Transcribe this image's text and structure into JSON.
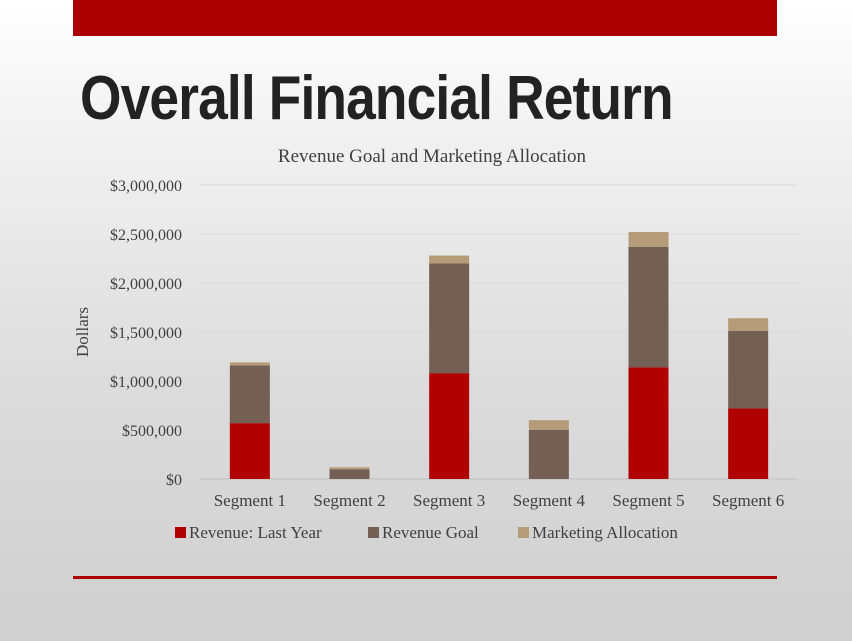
{
  "slide": {
    "title": "Overall Financial Return",
    "accent_color": "#ad0000"
  },
  "chart_data": {
    "type": "bar",
    "stacked": true,
    "title": "Revenue Goal and Marketing Allocation",
    "xlabel": "",
    "ylabel": "Dollars",
    "ylim": [
      0,
      3000000
    ],
    "yticks": [
      0,
      500000,
      1000000,
      1500000,
      2000000,
      2500000,
      3000000
    ],
    "ytick_labels": [
      "$0",
      "$500,000",
      "$1,000,000",
      "$1,500,000",
      "$2,000,000",
      "$2,500,000",
      "$3,000,000"
    ],
    "grid": true,
    "legend_position": "bottom",
    "categories": [
      "Segment 1",
      "Segment 2",
      "Segment 3",
      "Segment 4",
      "Segment 5",
      "Segment 6"
    ],
    "series": [
      {
        "name": "Revenue: Last Year",
        "color": "#b00000",
        "values": [
          570000,
          0,
          1080000,
          0,
          1140000,
          720000
        ]
      },
      {
        "name": "Revenue Goal",
        "color": "#735f53",
        "values": [
          590000,
          100000,
          1120000,
          500000,
          1230000,
          790000
        ]
      },
      {
        "name": "Marketing Allocation",
        "color": "#b59b77",
        "values": [
          30000,
          20000,
          80000,
          100000,
          150000,
          130000
        ]
      }
    ]
  }
}
